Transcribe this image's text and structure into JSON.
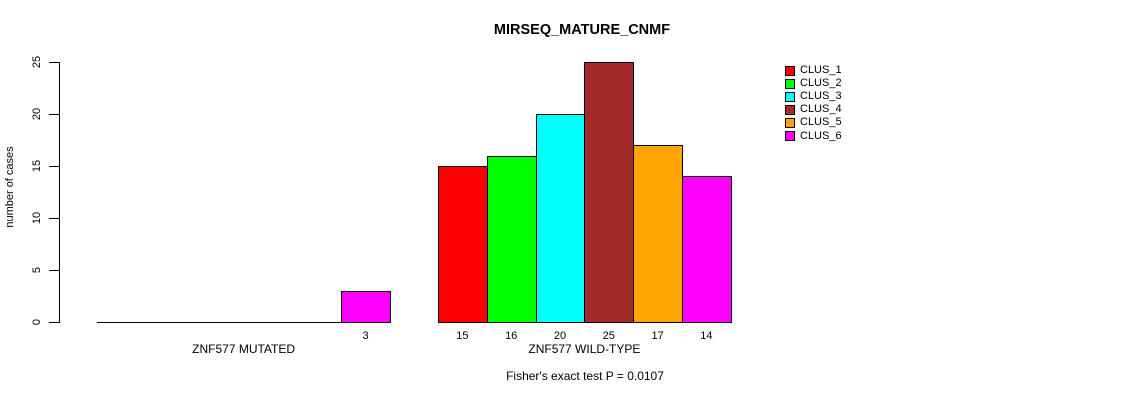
{
  "chart_data": {
    "type": "bar",
    "title": "MIRSEQ_MATURE_CNMF",
    "ylabel": "number of cases",
    "xlabel": "",
    "ylim": [
      0,
      25
    ],
    "yticks": [
      0,
      5,
      10,
      15,
      20,
      25
    ],
    "grid": false,
    "legend_position": "top-right",
    "axis_color": "#000000",
    "background_color": "#ffffff",
    "legend": [
      {
        "label": "CLUS_1",
        "color": "#ff0000"
      },
      {
        "label": "CLUS_2",
        "color": "#00ff00"
      },
      {
        "label": "CLUS_3",
        "color": "#00ffff"
      },
      {
        "label": "CLUS_4",
        "color": "#a52a2a"
      },
      {
        "label": "CLUS_5",
        "color": "#ffa500"
      },
      {
        "label": "CLUS_6",
        "color": "#ff00ff"
      }
    ],
    "groups": [
      {
        "label": "ZNF577 MUTATED",
        "values": [
          0,
          0,
          0,
          0,
          0,
          3
        ],
        "bar_labels": [
          "",
          "",
          "",
          "",
          "",
          "3"
        ]
      },
      {
        "label": "ZNF577 WILD-TYPE",
        "values": [
          15,
          16,
          20,
          25,
          17,
          14
        ],
        "bar_labels": [
          "15",
          "16",
          "20",
          "25",
          "17",
          "14"
        ]
      }
    ],
    "footnote": "Fisher's exact test P = 0.0107"
  }
}
